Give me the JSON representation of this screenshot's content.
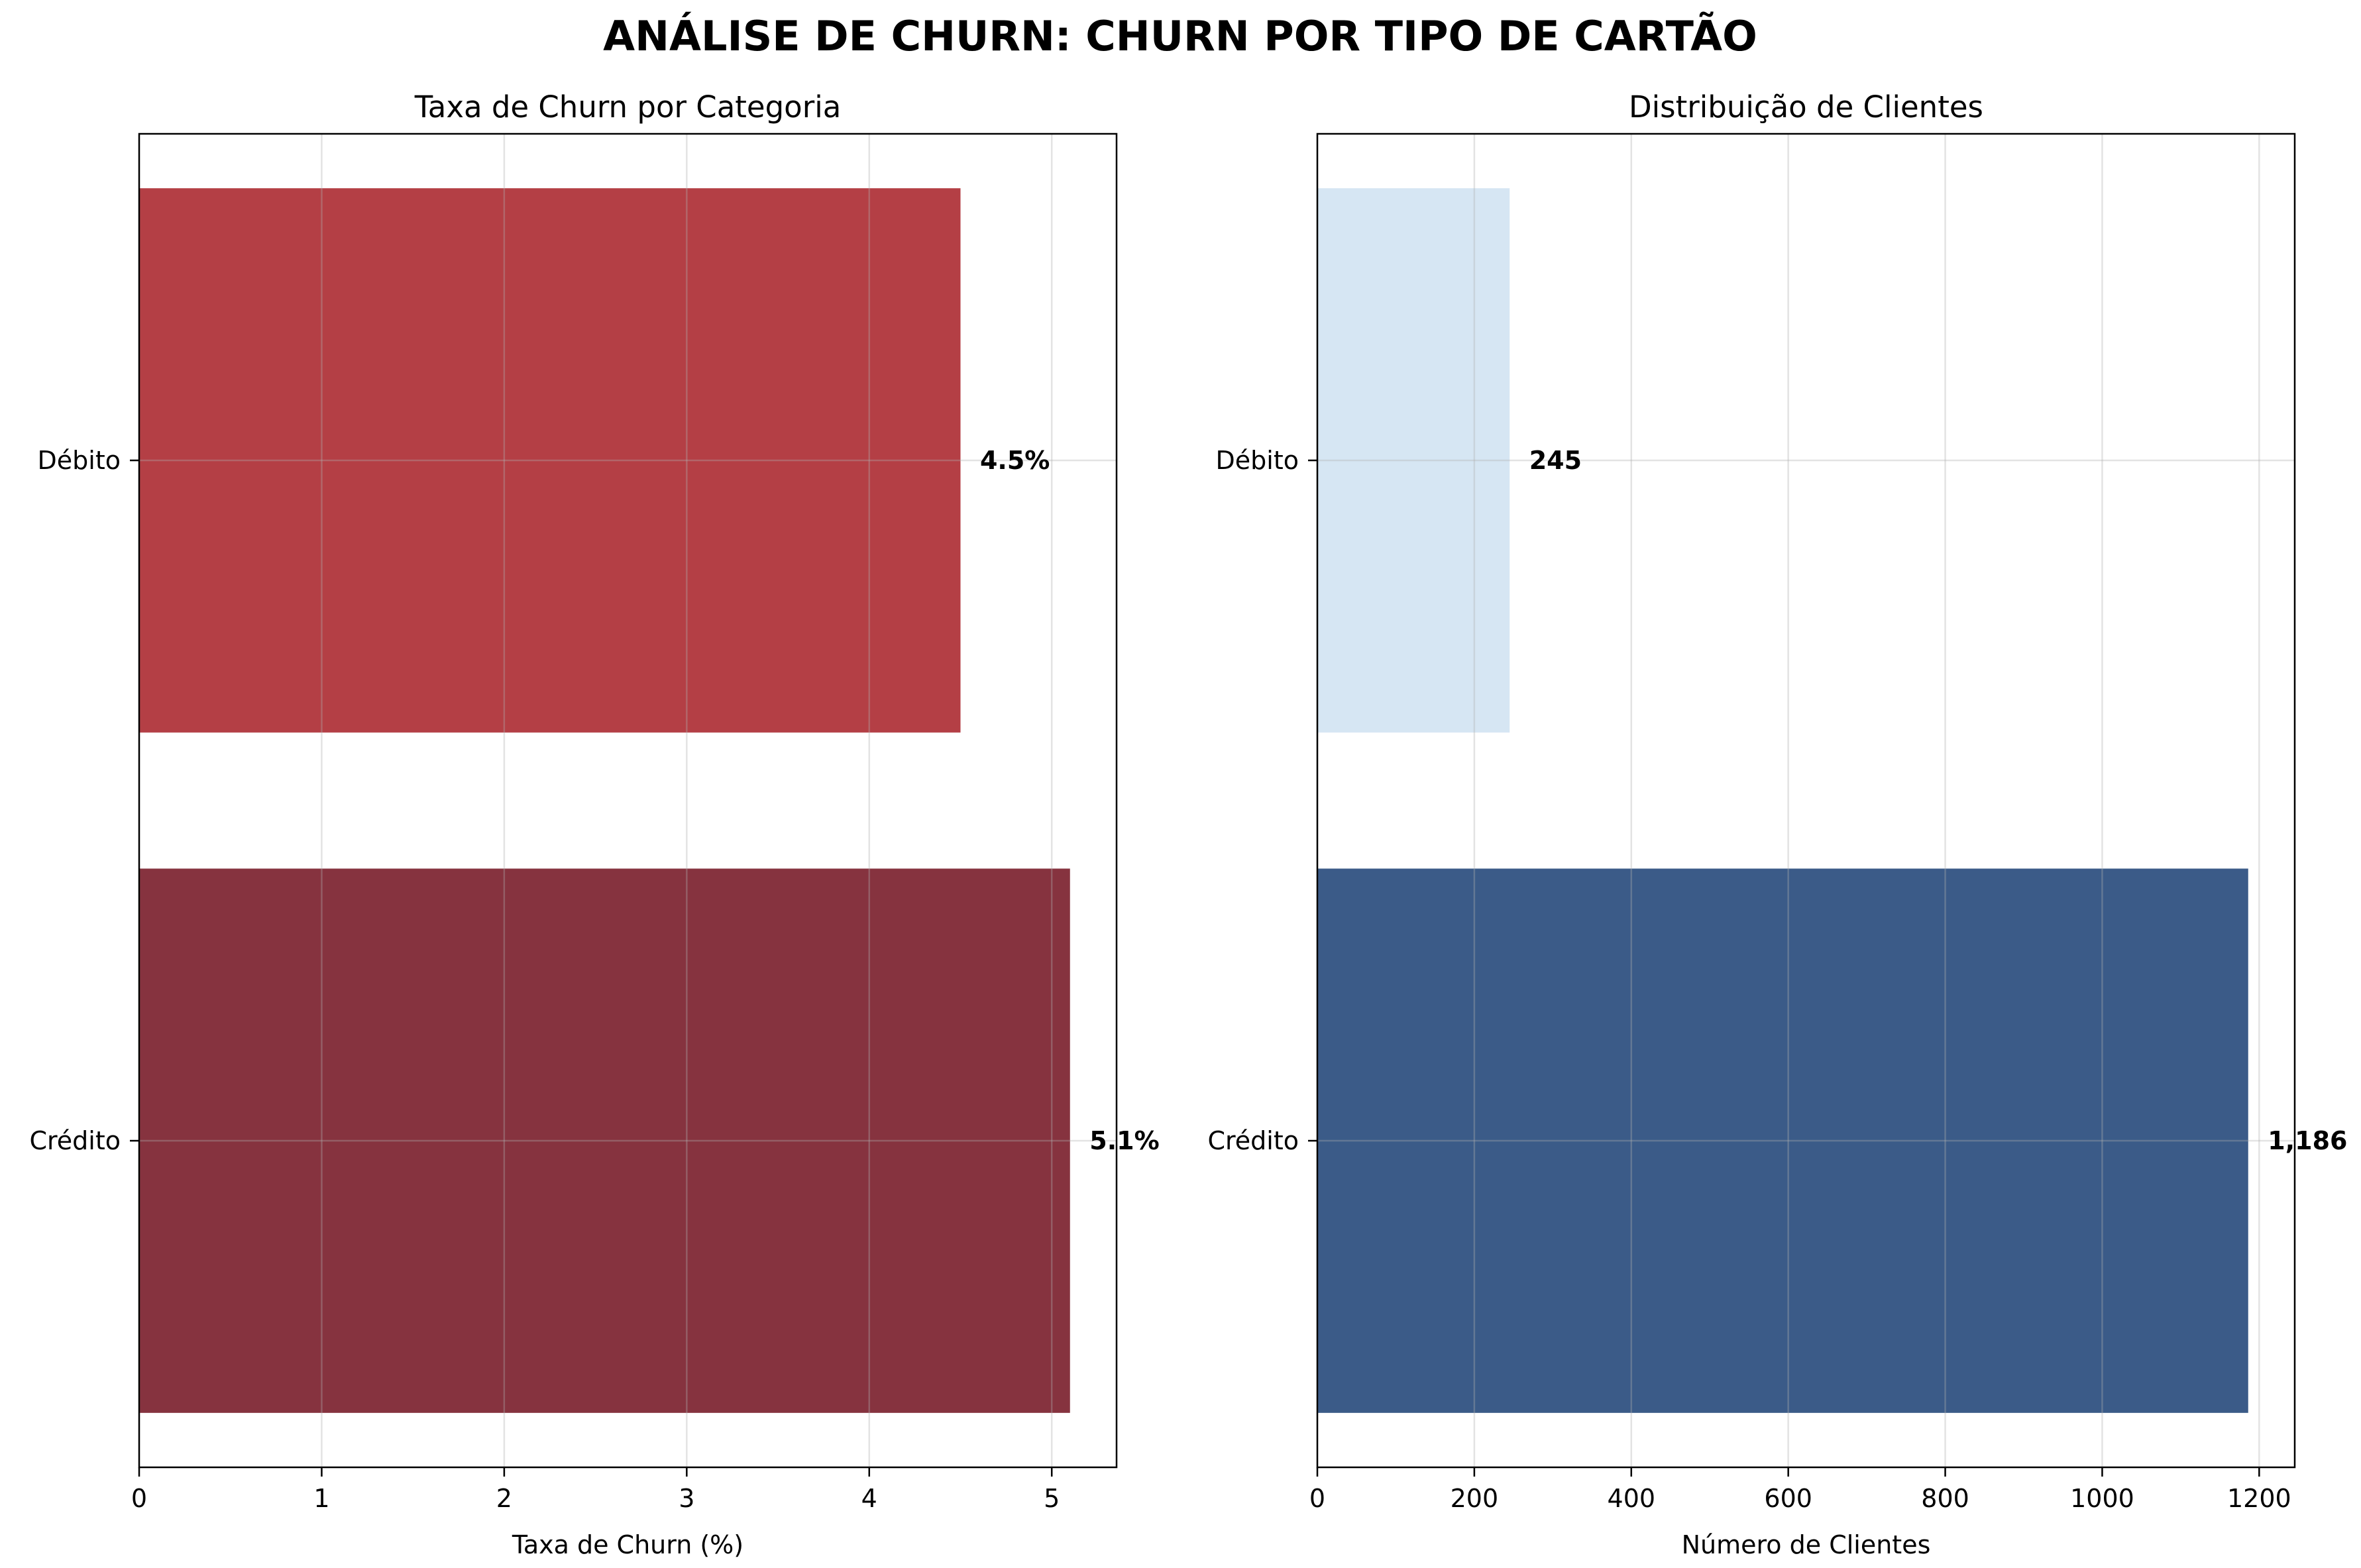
{
  "figure": {
    "title": "ANÁLISE DE CHURN: CHURN POR TIPO DE CARTÃO"
  },
  "chart_data": [
    {
      "type": "bar",
      "orientation": "horizontal",
      "title": "Taxa de Churn por Categoria",
      "xlabel": "Taxa de Churn (%)",
      "ylabel": "",
      "categories": [
        "Débito",
        "Crédito"
      ],
      "values": [
        4.5,
        5.1
      ],
      "data_labels": [
        "4.5%",
        "5.1%"
      ],
      "bar_colors": [
        "#b43f45",
        "#86333f"
      ],
      "xlim": [
        0,
        5.355
      ],
      "x_ticks": [
        0,
        1,
        2,
        3,
        4,
        5
      ],
      "x_tick_labels": [
        "0",
        "1",
        "2",
        "3",
        "4",
        "5"
      ],
      "grid": true,
      "legend": "none"
    },
    {
      "type": "bar",
      "orientation": "horizontal",
      "title": "Distribuição de Clientes",
      "xlabel": "Número de Clientes",
      "ylabel": "",
      "categories": [
        "Débito",
        "Crédito"
      ],
      "values": [
        245,
        1186
      ],
      "data_labels": [
        "245",
        "1,186"
      ],
      "bar_colors": [
        "#d6e6f3",
        "#3b5b88"
      ],
      "xlim": [
        0,
        1245.3
      ],
      "x_ticks": [
        0,
        200,
        400,
        600,
        800,
        1000,
        1200
      ],
      "x_tick_labels": [
        "0",
        "200",
        "400",
        "600",
        "800",
        "1000",
        "1200"
      ],
      "grid": true,
      "legend": "none"
    }
  ]
}
